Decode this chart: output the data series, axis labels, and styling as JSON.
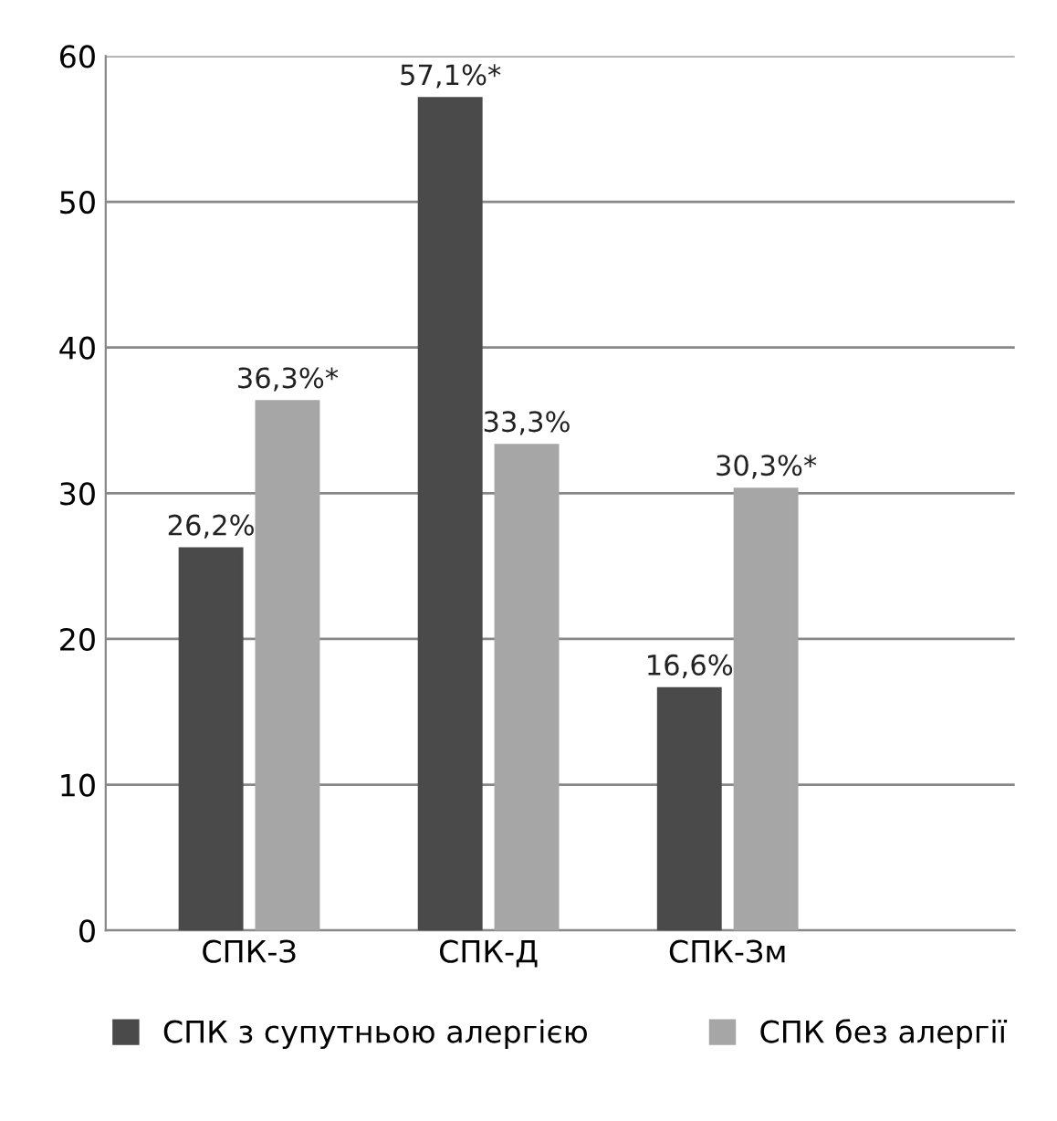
{
  "chart_data": {
    "type": "bar",
    "categories": [
      "СПК-З",
      "СПК-Д",
      "СПК-Зм"
    ],
    "series": [
      {
        "name": "СПК з супутньою алергією",
        "color": "#4a4a4a",
        "values": [
          26.2,
          57.1,
          16.6
        ],
        "value_labels": [
          "26,2%",
          "57,1%*",
          "16,6%"
        ]
      },
      {
        "name": "СПК без алергії",
        "color": "#a6a6a6",
        "values": [
          36.3,
          33.3,
          30.3
        ],
        "value_labels": [
          "36,3%*",
          "33,3%",
          "30,3%*"
        ]
      }
    ],
    "ylim": [
      0,
      60
    ],
    "yticks": [
      0,
      10,
      20,
      30,
      40,
      50,
      60
    ],
    "grid": "y",
    "legend": "bottom"
  }
}
